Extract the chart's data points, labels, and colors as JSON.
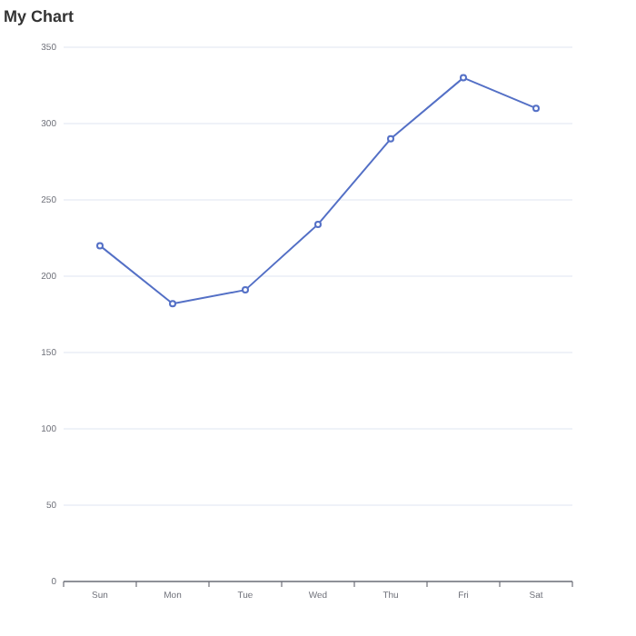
{
  "chart_data": {
    "type": "line",
    "title": "My Chart",
    "categories": [
      "Sun",
      "Mon",
      "Tue",
      "Wed",
      "Thu",
      "Fri",
      "Sat"
    ],
    "series": [
      {
        "color": "#5470c6",
        "values": [
          220,
          182,
          191,
          234,
          290,
          330,
          310
        ]
      }
    ],
    "ylim": [
      0,
      350
    ],
    "yticks": [
      0,
      50,
      100,
      150,
      200,
      250,
      300,
      350
    ],
    "grid": "y",
    "marker": "circle",
    "line_style": "solid"
  }
}
